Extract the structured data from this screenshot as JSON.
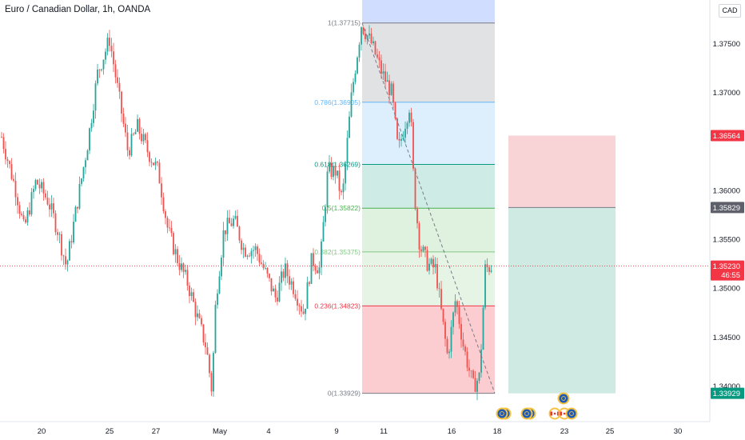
{
  "title": "Euro / Canadian Dollar, 1h, OANDA",
  "currency_label": "CAD",
  "colors": {
    "up": "#26a69a",
    "down": "#ef5350",
    "fib_1": "#787b86",
    "fib_0786": "#64b5f6",
    "fib_0618": "#089981",
    "fib_05": "#4caf50",
    "fib_0382": "#81c784",
    "fib_0236": "#f23645",
    "fib_0": "#787b86",
    "stop_zone": "#f7c9cd",
    "target_zone": "#c9e8df",
    "current_price_badge": "#f23645",
    "entry_badge": "#5d606b",
    "target_badge": "#089981"
  },
  "chart_data": {
    "type": "candlestick",
    "symbol": "EUR/CAD",
    "timeframe": "1h",
    "yaxis": {
      "ticks": [
        "1.37500",
        "1.37000",
        "1.36000",
        "1.35500",
        "1.35000",
        "1.34500",
        "1.34000"
      ],
      "ylim": [
        1.3364,
        1.3795
      ]
    },
    "xaxis": {
      "ticks": [
        "20",
        "25",
        "27",
        "May",
        "4",
        "9",
        "11",
        "16",
        "18",
        "23",
        "25",
        "30"
      ]
    },
    "fibonacci": [
      {
        "level": "1",
        "price": "1.37715"
      },
      {
        "level": "0.786",
        "price": "1.36905"
      },
      {
        "level": "0.618",
        "price": "1.36269"
      },
      {
        "level": "0.5",
        "price": "1.35822"
      },
      {
        "level": "0.382",
        "price": "1.35375"
      },
      {
        "level": "0.236",
        "price": "1.34823"
      },
      {
        "level": "0",
        "price": "1.33929"
      }
    ],
    "position": {
      "stop": 1.36564,
      "entry": 1.35829,
      "target": 1.33929
    },
    "price_labels": {
      "stop": "1.36564",
      "entry": "1.35829",
      "current": "1.35230",
      "countdown": "46:55",
      "target": "1.33929"
    },
    "last_price": 1.3523
  }
}
